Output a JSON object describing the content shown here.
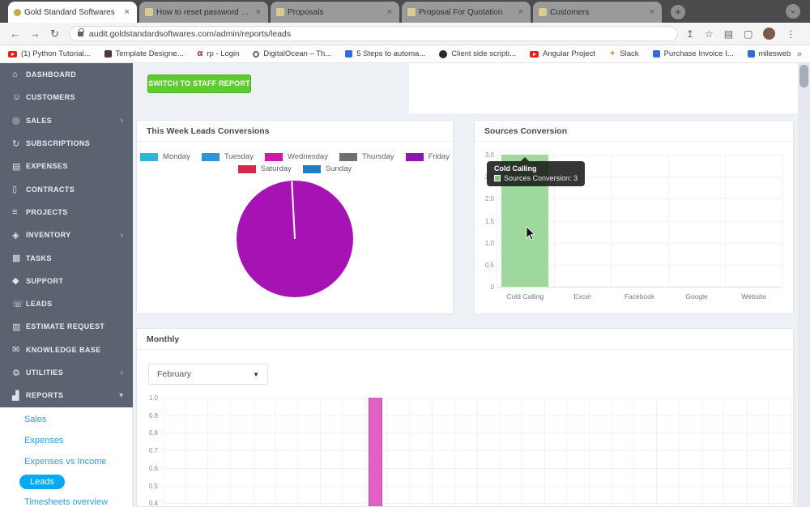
{
  "browser": {
    "tabs": [
      {
        "title": "Gold Standard Softwares",
        "active": true,
        "favicon": "gold-dot"
      },
      {
        "title": "How to reset password in linux",
        "active": false,
        "favicon": "page"
      },
      {
        "title": "Proposals",
        "active": false,
        "favicon": "page"
      },
      {
        "title": "Proposal For Quotation",
        "active": false,
        "favicon": "page"
      },
      {
        "title": "Customers",
        "active": false,
        "favicon": "page"
      }
    ],
    "toolbar": {
      "url": "audit.goldstandardsoftwares.com/admin/reports/leads"
    },
    "bookmarks": [
      {
        "label": "(1) Python Tutorial...",
        "icon": "youtube"
      },
      {
        "label": "Template Designe...",
        "icon": "dark-square"
      },
      {
        "label": "rp - Login",
        "icon": "alpha"
      },
      {
        "label": "DigitalOcean – Th...",
        "icon": "ring"
      },
      {
        "label": "5 Steps to automa...",
        "icon": "blue-doc"
      },
      {
        "label": "Client side scripti...",
        "icon": "github"
      },
      {
        "label": "Angular Project",
        "icon": "youtube"
      },
      {
        "label": "Slack",
        "icon": "slack"
      },
      {
        "label": "Purchase Invoice I...",
        "icon": "blue-doc"
      },
      {
        "label": "milesweb",
        "icon": "blue-doc"
      }
    ]
  },
  "sidebar": {
    "items": [
      {
        "label": "DASHBOARD",
        "icon": "home-icon",
        "expandable": false
      },
      {
        "label": "CUSTOMERS",
        "icon": "customers-icon",
        "expandable": false
      },
      {
        "label": "SALES",
        "icon": "sales-icon",
        "expandable": true
      },
      {
        "label": "SUBSCRIPTIONS",
        "icon": "subscriptions-icon",
        "expandable": false
      },
      {
        "label": "EXPENSES",
        "icon": "expenses-icon",
        "expandable": false
      },
      {
        "label": "CONTRACTS",
        "icon": "contracts-icon",
        "expandable": false
      },
      {
        "label": "PROJECTS",
        "icon": "projects-icon",
        "expandable": false
      },
      {
        "label": "INVENTORY",
        "icon": "inventory-icon",
        "expandable": true
      },
      {
        "label": "TASKS",
        "icon": "tasks-icon",
        "expandable": false
      },
      {
        "label": "SUPPORT",
        "icon": "support-icon",
        "expandable": false
      },
      {
        "label": "LEADS",
        "icon": "leads-icon",
        "expandable": false
      },
      {
        "label": "ESTIMATE REQUEST",
        "icon": "estimate-icon",
        "expandable": false
      },
      {
        "label": "KNOWLEDGE BASE",
        "icon": "knowledge-icon",
        "expandable": false
      },
      {
        "label": "UTILITIES",
        "icon": "utilities-icon",
        "expandable": true
      },
      {
        "label": "REPORTS",
        "icon": "reports-icon",
        "expandable": true,
        "expanded": true
      }
    ],
    "submenu": [
      {
        "label": "Sales",
        "active": false
      },
      {
        "label": "Expenses",
        "active": false
      },
      {
        "label": "Expenses vs Income",
        "active": false
      },
      {
        "label": "Leads",
        "active": true
      },
      {
        "label": "Timesheets overview",
        "active": false
      }
    ],
    "accent_color": "#03a9f4"
  },
  "main": {
    "switch_button_label": "SWITCH TO STAFF REPORT",
    "week_card_title": "This Week Leads Conversions",
    "sources_card_title": "Sources Conversion",
    "monthly_card_title": "Monthly",
    "monthly_select_value": "February",
    "tooltip": {
      "title": "Cold Calling",
      "text": "Sources Conversion: 3",
      "swatch_color": "#7bc87b"
    }
  },
  "chart_data": [
    {
      "type": "pie",
      "title": "This Week Leads Conversions",
      "categories": [
        "Monday",
        "Tuesday",
        "Wednesday",
        "Thursday",
        "Friday",
        "Saturday",
        "Sunday"
      ],
      "values": [
        0,
        0,
        0,
        0,
        1,
        0,
        0
      ],
      "legend_colors": [
        "#2ab7d8",
        "#2b96d8",
        "#cf18a8",
        "#6f6f6f",
        "#8d17ae",
        "#d22a4b",
        "#1f7ec6"
      ],
      "legend_rows": [
        5,
        2
      ],
      "pie_color": "#a513b4",
      "note": "single dominant slice fills ~100% of pie, thin white divider at top"
    },
    {
      "type": "bar",
      "title": "Sources Conversion",
      "categories": [
        "Cold Calling",
        "Excel",
        "Facebook",
        "Google",
        "Website"
      ],
      "values": [
        3,
        0,
        0,
        0,
        0
      ],
      "bar_color": "#9fd89c",
      "ylim": [
        0,
        3
      ],
      "y_ticks": [
        "3.0",
        "2.5",
        "2.0",
        "1.5",
        "1.0",
        "0.5",
        "0"
      ],
      "grid": true,
      "tooltip": {
        "category": "Cold Calling",
        "series": "Sources Conversion",
        "value": 3
      }
    },
    {
      "type": "bar",
      "title": "Monthly (February)",
      "x_days": 28,
      "bar_day": 10,
      "bar_value": 1.0,
      "bar_color": "#e060c6",
      "bar_border_color": "#c44fae",
      "visible_y_ticks": [
        "1.0",
        "0.9",
        "0.8",
        "0.7",
        "0.6",
        "0.5",
        "0.4"
      ],
      "grid": true,
      "note": "chart is clipped at the bottom edge of the viewport"
    }
  ]
}
